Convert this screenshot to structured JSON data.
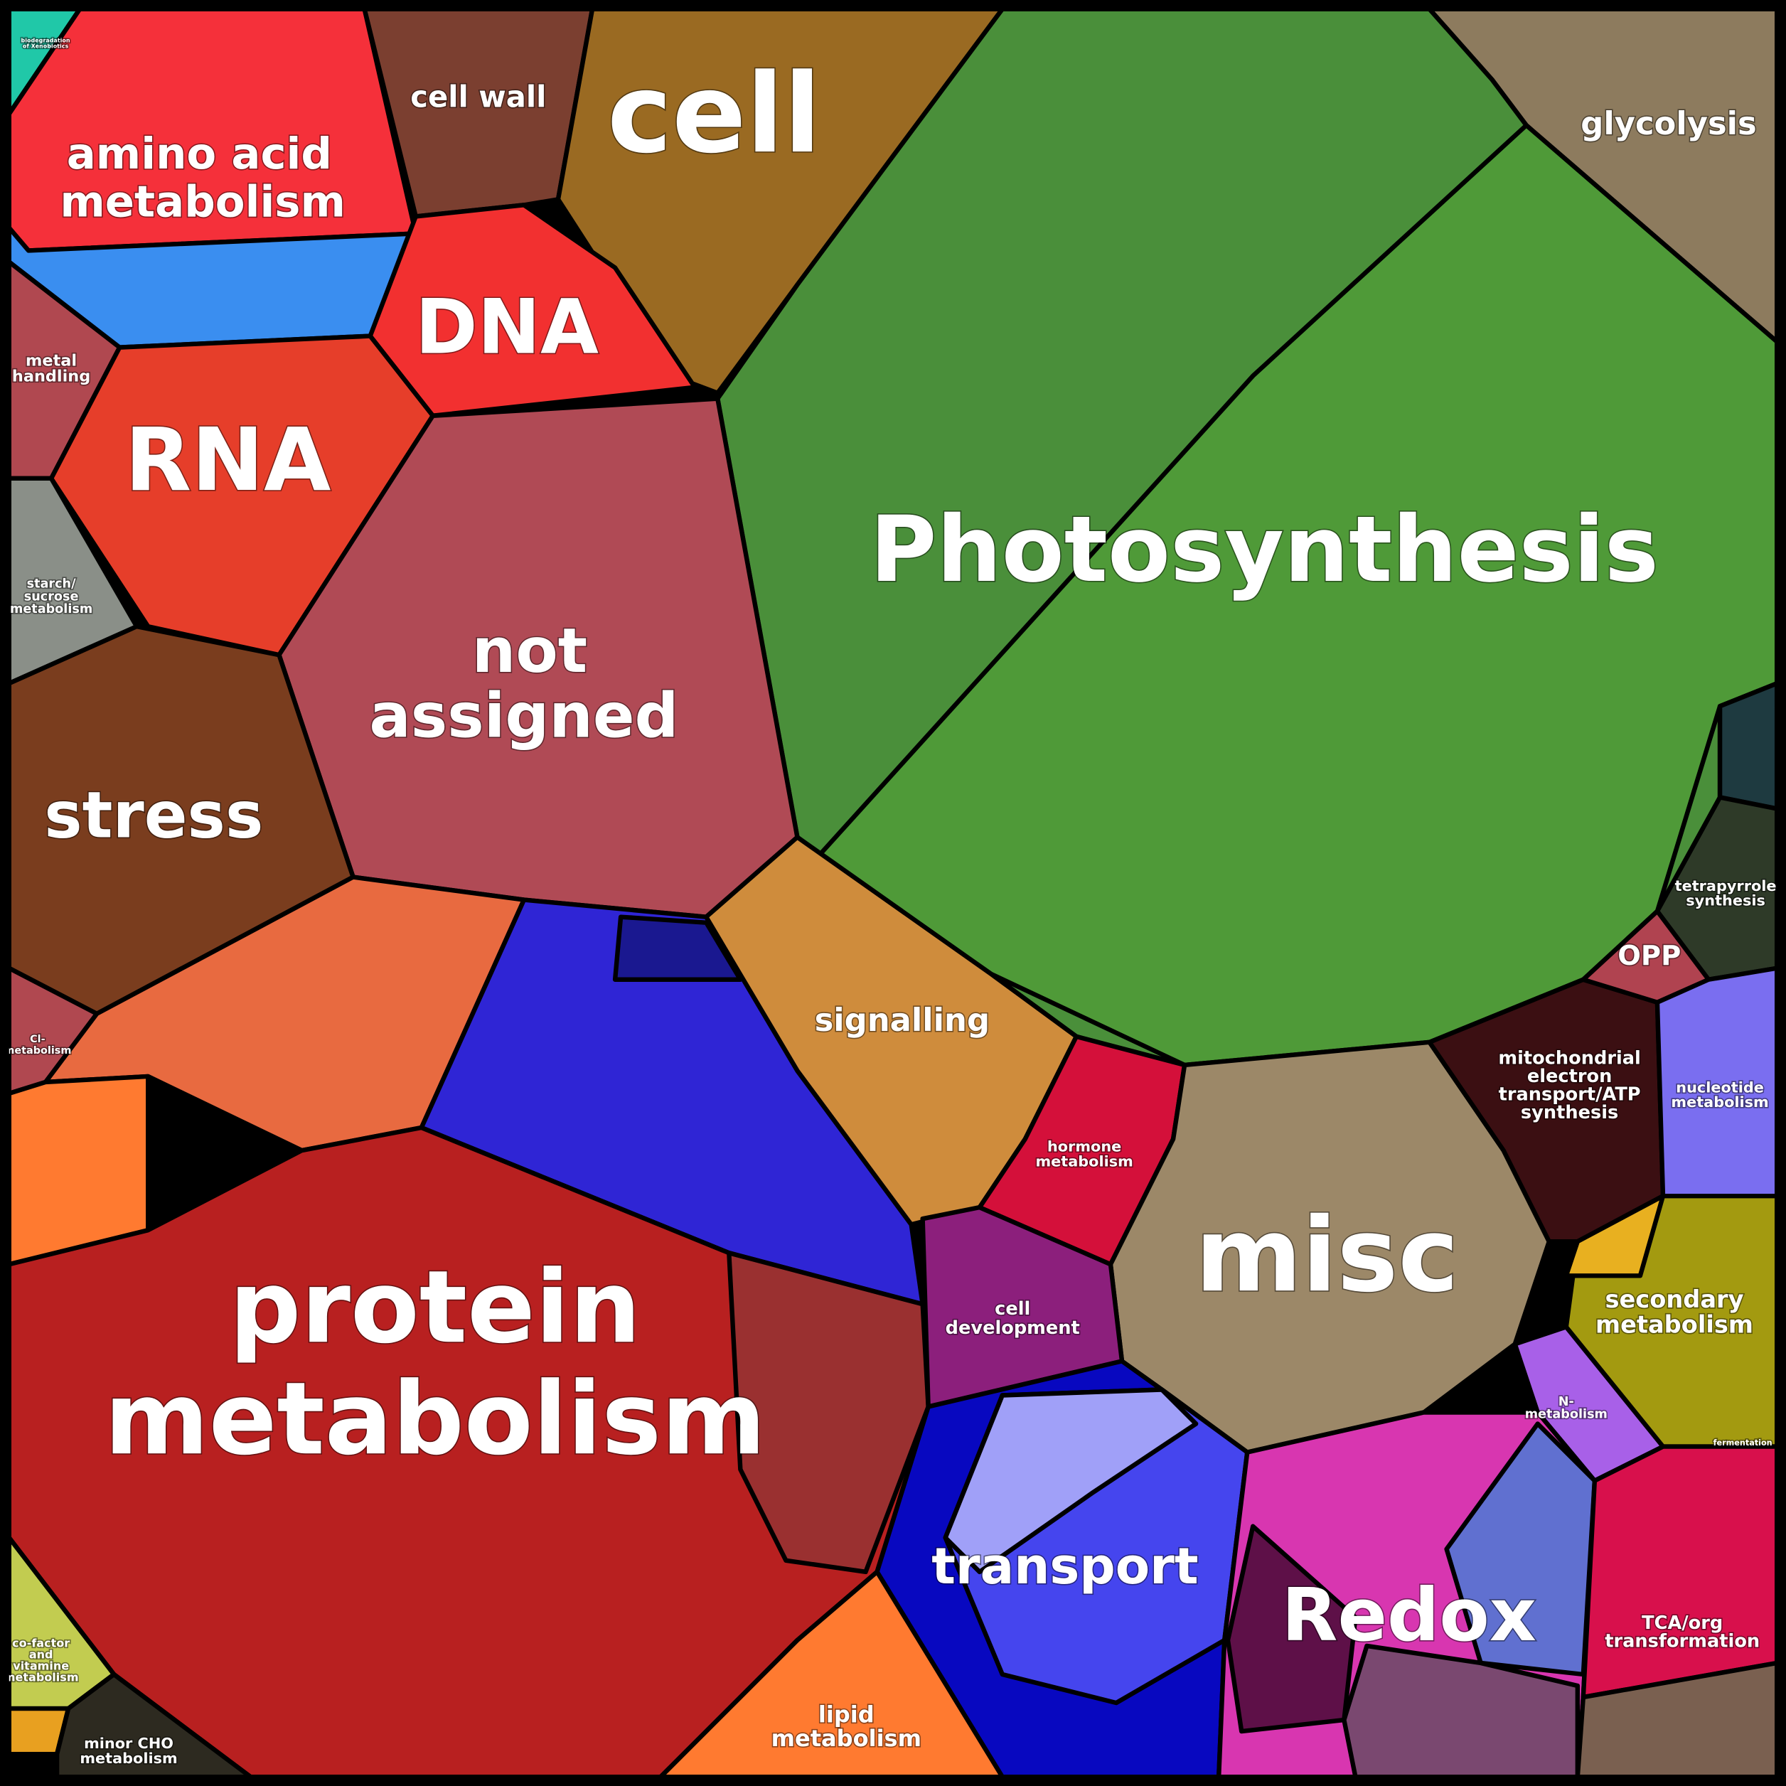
{
  "regions": [
    {
      "label": [
        "amino acid",
        "metabolism"
      ]
    },
    {
      "label": [
        "cell wall"
      ]
    },
    {
      "label": [
        "cell"
      ]
    },
    {
      "label": [
        "DNA"
      ]
    },
    {
      "label": [
        "glycolysis"
      ]
    },
    {
      "label": [
        "metal",
        "handling"
      ]
    },
    {
      "label": [
        "RNA"
      ]
    },
    {
      "label": [
        "Photosynthesis"
      ]
    },
    {
      "label": [
        "starch/",
        "sucrose",
        "metabolism"
      ]
    },
    {
      "label": [
        "not",
        "assigned"
      ]
    },
    {
      "label": [
        "stress"
      ]
    },
    {
      "label": [
        "tetrapyrrole",
        "synthesis"
      ]
    },
    {
      "label": [
        "OPP"
      ]
    },
    {
      "label": [
        "signalling"
      ]
    },
    {
      "label": [
        "Cl-",
        "metabolism"
      ]
    },
    {
      "label": [
        "mitochondrial",
        "electron",
        "transport/ATP",
        "synthesis"
      ]
    },
    {
      "label": [
        "nucleotide",
        "metabolism"
      ]
    },
    {
      "label": [
        "hormone",
        "metabolism"
      ]
    },
    {
      "label": [
        "misc"
      ]
    },
    {
      "label": [
        "protein",
        "metabolism"
      ]
    },
    {
      "label": [
        "cell",
        "development"
      ]
    },
    {
      "label": [
        "secondary",
        "metabolism"
      ]
    },
    {
      "label": [
        "N-",
        "metabolism"
      ]
    },
    {
      "label": [
        "fermentation"
      ]
    },
    {
      "label": [
        "transport"
      ]
    },
    {
      "label": [
        "Redox"
      ]
    },
    {
      "label": [
        "TCA/org",
        "transformation"
      ]
    },
    {
      "label": [
        "co-factor",
        "and",
        "vitamine",
        "metabolism"
      ]
    },
    {
      "label": [
        "minor CHO",
        "metabolism"
      ]
    },
    {
      "label": [
        "lipid",
        "metabolism"
      ]
    },
    {
      "label": [
        "biodegradation",
        "of Xenobiotics"
      ]
    }
  ]
}
